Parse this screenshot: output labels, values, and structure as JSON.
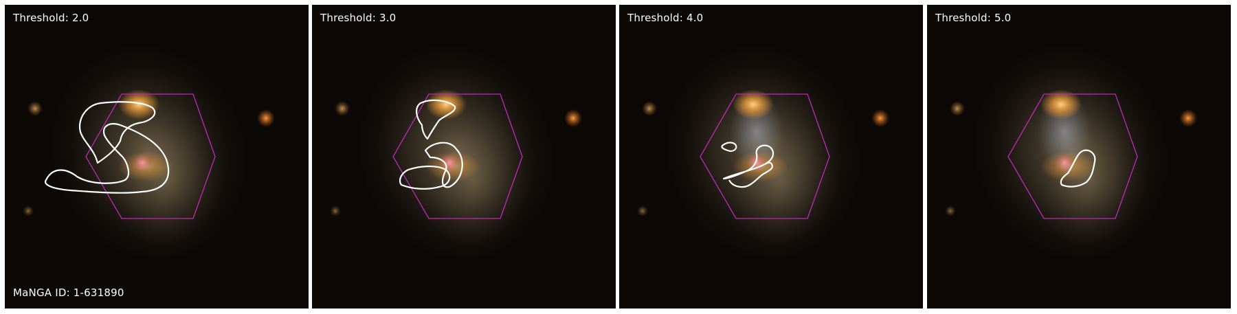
{
  "figure": {
    "panels": [
      {
        "title": "Threshold: 2.0",
        "manga_id": "MaNGA ID: 1-631890"
      },
      {
        "title": "Threshold: 3.0",
        "manga_id": ""
      },
      {
        "title": "Threshold: 4.0",
        "manga_id": ""
      },
      {
        "title": "Threshold: 5.0",
        "manga_id": ""
      }
    ]
  },
  "colors": {
    "hexagon": "#c02ab8",
    "contour": "#ffffff",
    "background": "#0b0806",
    "bulge": "#e89a3a",
    "disk": "#9c8a66"
  }
}
